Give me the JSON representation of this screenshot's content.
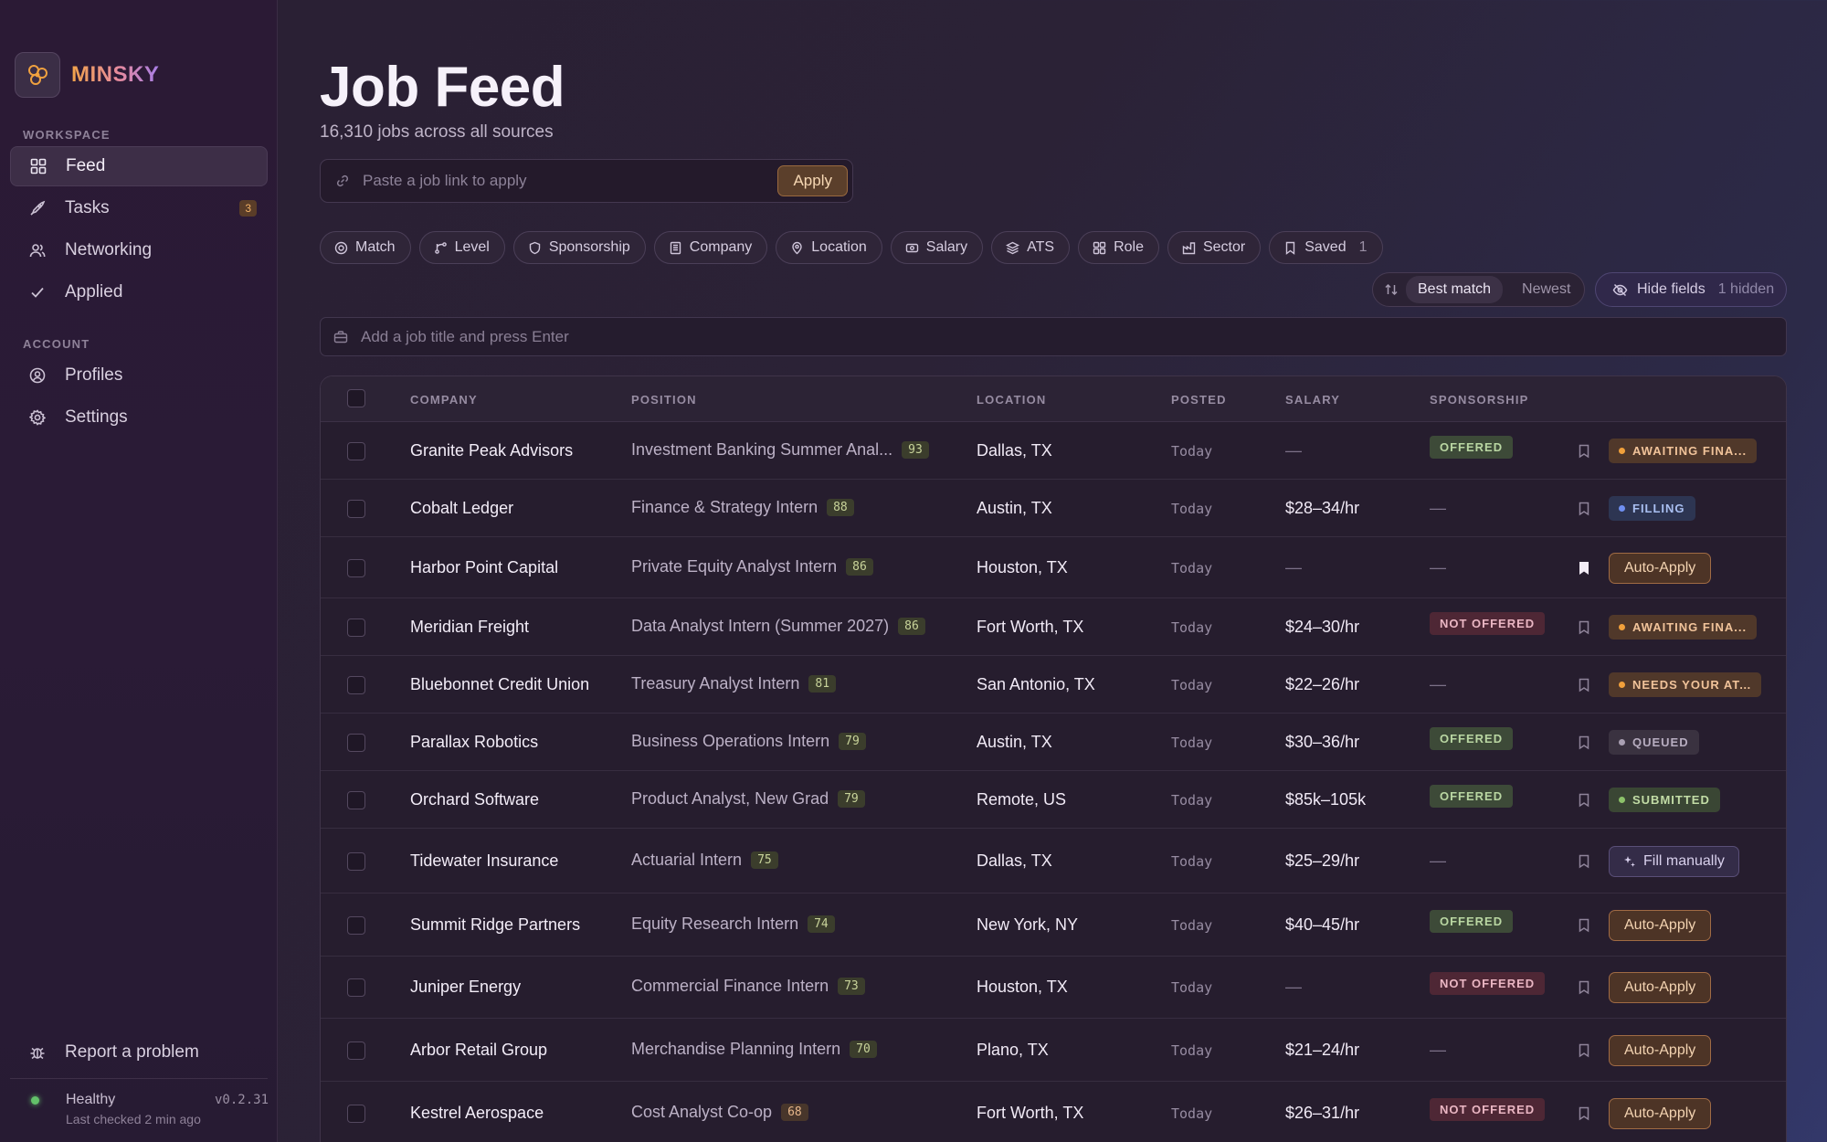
{
  "brand": {
    "name": "MINSKY"
  },
  "sidebar": {
    "workspace_label": "WORKSPACE",
    "account_label": "ACCOUNT",
    "workspace_items": [
      {
        "label": "Feed",
        "icon": "grid-icon",
        "active": true
      },
      {
        "label": "Tasks",
        "icon": "rocket-icon",
        "badge": "3"
      },
      {
        "label": "Networking",
        "icon": "users-icon"
      },
      {
        "label": "Applied",
        "icon": "check-icon"
      }
    ],
    "account_items": [
      {
        "label": "Profiles",
        "icon": "user-circle-icon"
      },
      {
        "label": "Settings",
        "icon": "gear-icon"
      }
    ],
    "report_label": "Report a problem",
    "health": {
      "status": "Healthy",
      "last_checked": "Last checked 2 min ago",
      "version": "v0.2.31",
      "color": "#63c16a"
    }
  },
  "header": {
    "title": "Job Feed",
    "subtitle": "16,310 jobs across all sources"
  },
  "link_input": {
    "placeholder": "Paste a job link to apply",
    "value": "",
    "button": "Apply"
  },
  "filters": [
    {
      "label": "Match",
      "icon": "target-icon"
    },
    {
      "label": "Level",
      "icon": "branch-icon"
    },
    {
      "label": "Sponsorship",
      "icon": "shield-icon"
    },
    {
      "label": "Company",
      "icon": "building-icon"
    },
    {
      "label": "Location",
      "icon": "pin-icon"
    },
    {
      "label": "Salary",
      "icon": "money-icon"
    },
    {
      "label": "ATS",
      "icon": "layers-icon"
    },
    {
      "label": "Role",
      "icon": "grid-icon"
    },
    {
      "label": "Sector",
      "icon": "factory-icon"
    },
    {
      "label": "Saved",
      "icon": "bookmark-icon",
      "count": "1"
    }
  ],
  "sort": {
    "options": [
      "Best match",
      "Newest"
    ],
    "selected": "Best match"
  },
  "hide_fields": {
    "label": "Hide fields",
    "hidden": "1 hidden"
  },
  "add_title": {
    "placeholder": "Add a job title and press Enter",
    "value": ""
  },
  "table": {
    "columns": [
      "COMPANY",
      "POSITION",
      "LOCATION",
      "POSTED",
      "SALARY",
      "SPONSORSHIP"
    ],
    "rows": [
      {
        "company": "Granite Peak Advisors",
        "position": "Investment Banking Summer Anal...",
        "score": "93",
        "location": "Dallas, TX",
        "posted": "Today",
        "salary": "—",
        "sponsorship": "OFFERED",
        "saved": false,
        "status": {
          "kind": "pill",
          "variant": "await",
          "text": "AWAITING FINA..."
        }
      },
      {
        "company": "Cobalt Ledger",
        "position": "Finance & Strategy Intern",
        "score": "88",
        "location": "Austin, TX",
        "posted": "Today",
        "salary": "$28–34/hr",
        "sponsorship": "—",
        "saved": false,
        "status": {
          "kind": "pill",
          "variant": "filling",
          "text": "FILLING"
        }
      },
      {
        "company": "Harbor Point Capital",
        "position": "Private Equity Analyst Intern",
        "score": "86",
        "location": "Houston, TX",
        "posted": "Today",
        "salary": "—",
        "sponsorship": "—",
        "saved": true,
        "status": {
          "kind": "auto",
          "text": "Auto-Apply"
        }
      },
      {
        "company": "Meridian Freight",
        "position": "Data Analyst Intern (Summer 2027)",
        "score": "86",
        "location": "Fort Worth, TX",
        "posted": "Today",
        "salary": "$24–30/hr",
        "sponsorship": "NOT OFFERED",
        "saved": false,
        "status": {
          "kind": "pill",
          "variant": "await",
          "text": "AWAITING FINA..."
        }
      },
      {
        "company": "Bluebonnet Credit Union",
        "position": "Treasury Analyst Intern",
        "score": "81",
        "location": "San Antonio, TX",
        "posted": "Today",
        "salary": "$22–26/hr",
        "sponsorship": "—",
        "saved": false,
        "status": {
          "kind": "pill",
          "variant": "needs",
          "text": "NEEDS YOUR AT..."
        }
      },
      {
        "company": "Parallax Robotics",
        "position": "Business Operations Intern",
        "score": "79",
        "location": "Austin, TX",
        "posted": "Today",
        "salary": "$30–36/hr",
        "sponsorship": "OFFERED",
        "saved": false,
        "status": {
          "kind": "pill",
          "variant": "queued",
          "text": "QUEUED"
        }
      },
      {
        "company": "Orchard Software",
        "position": "Product Analyst, New Grad",
        "score": "79",
        "location": "Remote, US",
        "posted": "Today",
        "salary": "$85k–105k",
        "sponsorship": "OFFERED",
        "saved": false,
        "status": {
          "kind": "pill",
          "variant": "submitted",
          "text": "SUBMITTED"
        }
      },
      {
        "company": "Tidewater Insurance",
        "position": "Actuarial Intern",
        "score": "75",
        "location": "Dallas, TX",
        "posted": "Today",
        "salary": "$25–29/hr",
        "sponsorship": "—",
        "saved": false,
        "status": {
          "kind": "fill",
          "text": "Fill manually"
        }
      },
      {
        "company": "Summit Ridge Partners",
        "position": "Equity Research Intern",
        "score": "74",
        "location": "New York, NY",
        "posted": "Today",
        "salary": "$40–45/hr",
        "sponsorship": "OFFERED",
        "saved": false,
        "status": {
          "kind": "auto",
          "text": "Auto-Apply"
        }
      },
      {
        "company": "Juniper Energy",
        "position": "Commercial Finance Intern",
        "score": "73",
        "location": "Houston, TX",
        "posted": "Today",
        "salary": "—",
        "sponsorship": "NOT OFFERED",
        "saved": false,
        "status": {
          "kind": "auto",
          "text": "Auto-Apply"
        }
      },
      {
        "company": "Arbor Retail Group",
        "position": "Merchandise Planning Intern",
        "score": "70",
        "location": "Plano, TX",
        "posted": "Today",
        "salary": "$21–24/hr",
        "sponsorship": "—",
        "saved": false,
        "status": {
          "kind": "auto",
          "text": "Auto-Apply"
        }
      },
      {
        "company": "Kestrel Aerospace",
        "position": "Cost Analyst Co-op",
        "score": "68",
        "location": "Fort Worth, TX",
        "posted": "Today",
        "salary": "$26–31/hr",
        "sponsorship": "NOT OFFERED",
        "saved": false,
        "status": {
          "kind": "auto",
          "text": "Auto-Apply"
        }
      }
    ]
  }
}
